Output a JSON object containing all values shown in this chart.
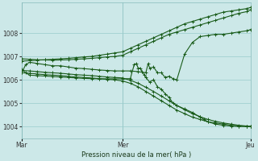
{
  "title": "Pression niveau de la mer( hPa )",
  "background_color": "#cce8e8",
  "grid_color": "#99cccc",
  "line_color": "#1a5c1a",
  "ylim": [
    1003.5,
    1009.3
  ],
  "yticks": [
    1004,
    1005,
    1006,
    1007,
    1008
  ],
  "xtick_labels": [
    "Mar",
    "Mer",
    "Jeu"
  ],
  "xtick_positions": [
    0,
    130,
    295
  ],
  "vline_positions": [
    0,
    130,
    295
  ],
  "series": [
    {
      "x": [
        0,
        10,
        20,
        30,
        40,
        50,
        60,
        70,
        80,
        90,
        100,
        110,
        120,
        130,
        140,
        150,
        160,
        170,
        180,
        190,
        200,
        210,
        220,
        230,
        240,
        250,
        260,
        270,
        280,
        290,
        295
      ],
      "y": [
        1006.8,
        1006.82,
        1006.84,
        1006.86,
        1006.88,
        1006.9,
        1006.92,
        1006.95,
        1006.98,
        1007.0,
        1007.05,
        1007.1,
        1007.15,
        1007.2,
        1007.35,
        1007.5,
        1007.65,
        1007.8,
        1007.95,
        1008.1,
        1008.25,
        1008.4,
        1008.5,
        1008.6,
        1008.7,
        1008.8,
        1008.9,
        1008.95,
        1009.0,
        1009.05,
        1009.1
      ]
    },
    {
      "x": [
        0,
        10,
        20,
        30,
        40,
        50,
        60,
        70,
        80,
        90,
        100,
        110,
        120,
        130,
        140,
        150,
        160,
        170,
        180,
        190,
        200,
        210,
        220,
        230,
        240,
        250,
        260,
        270,
        280,
        290,
        295
      ],
      "y": [
        1006.9,
        1006.88,
        1006.86,
        1006.85,
        1006.84,
        1006.85,
        1006.86,
        1006.88,
        1006.9,
        1006.92,
        1006.95,
        1006.98,
        1007.0,
        1007.05,
        1007.2,
        1007.35,
        1007.5,
        1007.65,
        1007.8,
        1007.95,
        1008.05,
        1008.15,
        1008.25,
        1008.35,
        1008.45,
        1008.55,
        1008.65,
        1008.75,
        1008.85,
        1008.92,
        1009.0
      ]
    },
    {
      "x": [
        0,
        5,
        10,
        20,
        30,
        40,
        50,
        60,
        70,
        80,
        90,
        100,
        110,
        120,
        130,
        140,
        150,
        160,
        163,
        165,
        170,
        175,
        180,
        185,
        190,
        195,
        200,
        210,
        220,
        230,
        240,
        250,
        260,
        270,
        280,
        290,
        295
      ],
      "y": [
        1006.3,
        1006.65,
        1006.75,
        1006.7,
        1006.65,
        1006.6,
        1006.6,
        1006.55,
        1006.5,
        1006.48,
        1006.45,
        1006.42,
        1006.4,
        1006.38,
        1006.38,
        1006.38,
        1006.35,
        1006.3,
        1006.7,
        1006.5,
        1006.55,
        1006.3,
        1006.3,
        1006.1,
        1006.15,
        1006.05,
        1006.0,
        1007.1,
        1007.6,
        1007.85,
        1007.9,
        1007.95,
        1007.95,
        1008.0,
        1008.05,
        1008.1,
        1008.15
      ]
    },
    {
      "x": [
        0,
        10,
        20,
        30,
        40,
        50,
        60,
        70,
        80,
        90,
        100,
        110,
        120,
        130,
        140,
        150,
        160,
        170,
        180,
        190,
        200,
        210,
        220,
        230,
        240,
        250,
        260,
        270,
        280,
        290,
        295
      ],
      "y": [
        1006.3,
        1006.28,
        1006.25,
        1006.22,
        1006.2,
        1006.18,
        1006.15,
        1006.12,
        1006.1,
        1006.08,
        1006.05,
        1006.02,
        1006.0,
        1005.95,
        1005.85,
        1005.7,
        1005.5,
        1005.3,
        1005.1,
        1004.9,
        1004.7,
        1004.55,
        1004.4,
        1004.3,
        1004.2,
        1004.15,
        1004.1,
        1004.05,
        1004.02,
        1004.0,
        1004.0
      ]
    },
    {
      "x": [
        0,
        10,
        20,
        30,
        40,
        50,
        60,
        70,
        80,
        90,
        100,
        110,
        120,
        130,
        140,
        150,
        160,
        170,
        180,
        190,
        200,
        210,
        220,
        230,
        240,
        250,
        260,
        270,
        280,
        290,
        295
      ],
      "y": [
        1006.4,
        1006.38,
        1006.35,
        1006.32,
        1006.3,
        1006.28,
        1006.25,
        1006.22,
        1006.2,
        1006.18,
        1006.15,
        1006.12,
        1006.1,
        1006.08,
        1005.98,
        1005.85,
        1005.68,
        1005.5,
        1005.3,
        1005.1,
        1004.9,
        1004.72,
        1004.55,
        1004.42,
        1004.3,
        1004.22,
        1004.15,
        1004.1,
        1004.05,
        1004.02,
        1004.0
      ]
    },
    {
      "x": [
        0,
        5,
        10,
        20,
        30,
        40,
        50,
        60,
        70,
        80,
        90,
        100,
        110,
        120,
        130,
        140,
        145,
        148,
        150,
        153,
        155,
        158,
        160,
        165,
        170,
        175,
        180,
        185,
        190,
        195,
        200,
        210,
        220,
        230,
        235,
        240,
        250,
        260,
        270,
        280,
        290,
        295
      ],
      "y": [
        1006.45,
        1006.3,
        1006.2,
        1006.18,
        1006.16,
        1006.14,
        1006.12,
        1006.1,
        1006.08,
        1006.06,
        1006.05,
        1006.04,
        1006.04,
        1006.04,
        1006.04,
        1006.05,
        1006.65,
        1006.7,
        1006.5,
        1006.5,
        1006.35,
        1006.2,
        1006.1,
        1005.9,
        1006.0,
        1005.7,
        1005.6,
        1005.4,
        1005.25,
        1005.0,
        1004.9,
        1004.75,
        1004.6,
        1004.4,
        1004.3,
        1004.2,
        1004.1,
        1004.05,
        1004.02,
        1004.0,
        1004.0,
        1004.0
      ]
    }
  ]
}
